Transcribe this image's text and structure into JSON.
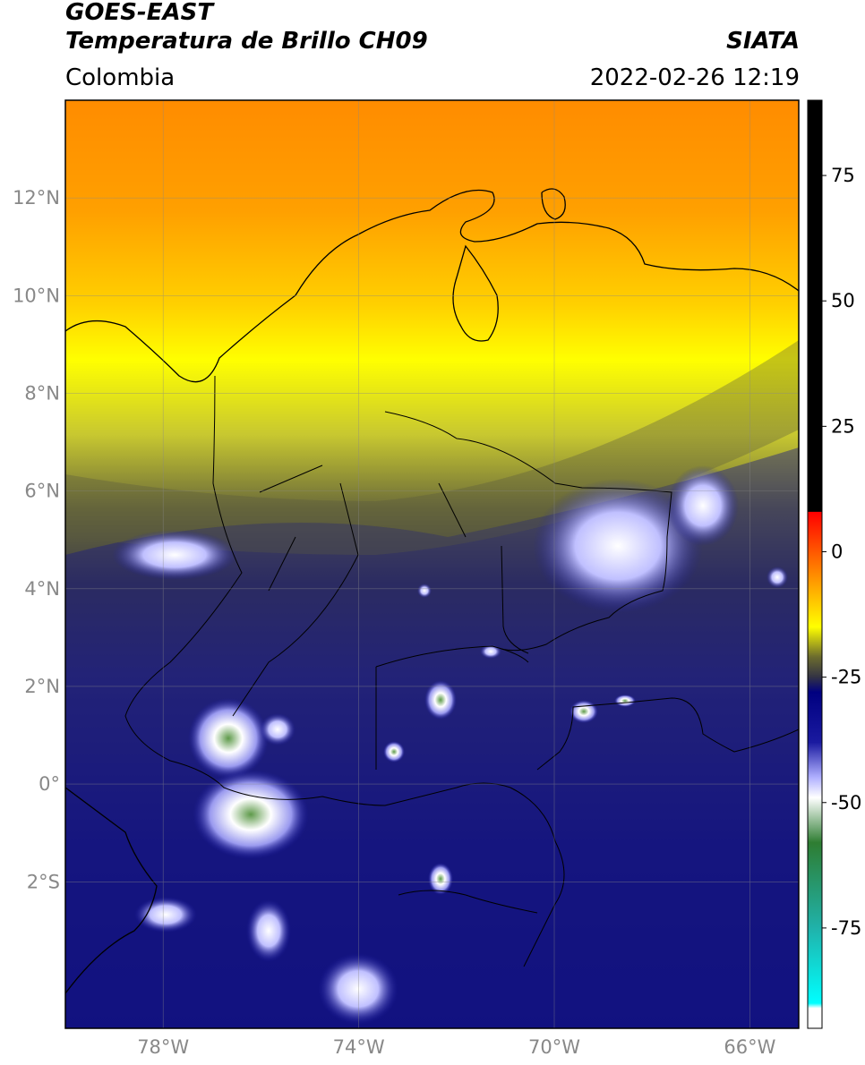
{
  "header": {
    "satellite": "GOES-EAST",
    "product": "Temperatura de Brillo CH09",
    "agency": "SIATA",
    "region": "Colombia",
    "timestamp": "2022-02-26 12:19"
  },
  "map": {
    "lon_range": [
      -80,
      -65
    ],
    "lat_range": [
      -5,
      14
    ],
    "lat_ticks": [
      {
        "value": 12,
        "label": "12°N"
      },
      {
        "value": 10,
        "label": "10°N"
      },
      {
        "value": 8,
        "label": "8°N"
      },
      {
        "value": 6,
        "label": "6°N"
      },
      {
        "value": 4,
        "label": "4°N"
      },
      {
        "value": 2,
        "label": "2°N"
      },
      {
        "value": 0,
        "label": "0°"
      },
      {
        "value": -2,
        "label": "2°S"
      }
    ],
    "lon_ticks": [
      {
        "value": -78,
        "label": "78°W"
      },
      {
        "value": -74,
        "label": "74°W"
      },
      {
        "value": -70,
        "label": "70°W"
      },
      {
        "value": -66,
        "label": "66°W"
      }
    ]
  },
  "colorbar": {
    "range": [
      -95,
      90
    ],
    "ticks": [
      {
        "value": 75,
        "label": "75"
      },
      {
        "value": 50,
        "label": "50"
      },
      {
        "value": 25,
        "label": "25"
      },
      {
        "value": 0,
        "label": "0"
      },
      {
        "value": -25,
        "label": "-25"
      },
      {
        "value": -50,
        "label": "-50"
      },
      {
        "value": -75,
        "label": "-75"
      }
    ],
    "stops": [
      {
        "value": 90,
        "color": "#000000"
      },
      {
        "value": 8,
        "color": "#000000"
      },
      {
        "value": 7.9,
        "color": "#ff0000"
      },
      {
        "value": -5,
        "color": "#ff9000"
      },
      {
        "value": -15,
        "color": "#ffff00"
      },
      {
        "value": -21,
        "color": "#6b6b2e"
      },
      {
        "value": -25,
        "color": "#333344"
      },
      {
        "value": -28,
        "color": "#000080"
      },
      {
        "value": -38,
        "color": "#1a1aa0"
      },
      {
        "value": -45,
        "color": "#b0b0ff"
      },
      {
        "value": -49,
        "color": "#ffffff"
      },
      {
        "value": -58,
        "color": "#2e7d32"
      },
      {
        "value": -75,
        "color": "#20b2aa"
      },
      {
        "value": -90,
        "color": "#00ffff"
      },
      {
        "value": -91,
        "color": "#ffffff"
      },
      {
        "value": -95,
        "color": "#ffffff"
      }
    ]
  }
}
